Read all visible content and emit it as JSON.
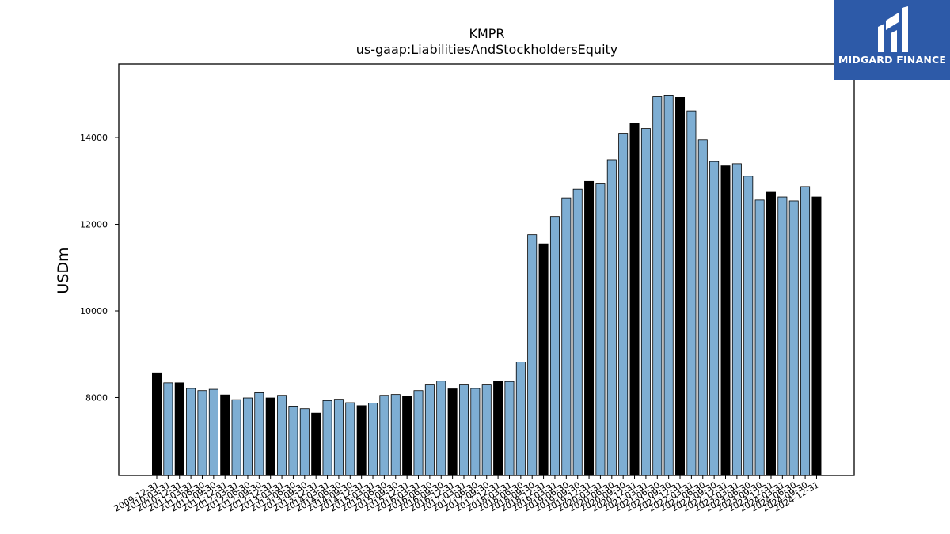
{
  "brand": {
    "name": "MIDGARD FINANCE",
    "panel_color": "#2d5aa8"
  },
  "chart_data": {
    "type": "bar",
    "title": "KMPR",
    "subtitle": "us-gaap:LiabilitiesAndStockholdersEquity",
    "ylabel": "USDm",
    "xlabel": "",
    "ylim": [
      6200,
      15700
    ],
    "yticks": [
      8000,
      10000,
      12000,
      14000
    ],
    "grid": false,
    "colors": {
      "annual": "#000000",
      "quarterly": "#7eaed3",
      "edge": "#000000"
    },
    "categories": [
      "2009-12-31",
      "2010-03-31",
      "2010-12-31",
      "2011-03-31",
      "2011-06-30",
      "2011-09-30",
      "2011-12-31",
      "2012-03-31",
      "2012-06-30",
      "2012-09-30",
      "2012-12-31",
      "2013-03-31",
      "2013-06-30",
      "2013-09-30",
      "2013-12-31",
      "2014-03-31",
      "2014-06-30",
      "2014-09-30",
      "2014-12-31",
      "2015-03-31",
      "2015-06-30",
      "2015-09-30",
      "2015-12-31",
      "2016-03-31",
      "2016-06-30",
      "2016-09-30",
      "2016-12-31",
      "2017-03-31",
      "2017-06-30",
      "2017-09-30",
      "2017-12-31",
      "2018-03-31",
      "2018-06-30",
      "2018-09-30",
      "2018-12-31",
      "2019-03-31",
      "2019-06-30",
      "2019-09-30",
      "2019-12-31",
      "2020-03-31",
      "2020-06-30",
      "2020-09-30",
      "2020-12-31",
      "2021-03-31",
      "2021-06-30",
      "2021-09-30",
      "2021-12-31",
      "2022-03-31",
      "2022-06-30",
      "2022-09-30",
      "2022-12-31",
      "2023-03-31",
      "2023-06-30",
      "2023-09-30",
      "2023-12-31",
      "2024-03-31",
      "2024-06-30",
      "2024-09-30",
      "2024-12-31"
    ],
    "values": [
      8570,
      8340,
      8340,
      8210,
      8160,
      8190,
      8060,
      7950,
      7990,
      8110,
      7990,
      8050,
      7800,
      7740,
      7640,
      7930,
      7960,
      7880,
      7810,
      7870,
      8050,
      8070,
      8030,
      8160,
      8290,
      8380,
      8200,
      8290,
      8210,
      8290,
      8370,
      8370,
      8820,
      11760,
      11550,
      12180,
      12610,
      12810,
      12990,
      12950,
      13490,
      14100,
      14330,
      14210,
      14960,
      14980,
      14930,
      14620,
      13950,
      13450,
      13350,
      13400,
      13110,
      12560,
      12740,
      12630,
      12540,
      12870,
      12630
    ],
    "annual": [
      true,
      false,
      true,
      false,
      false,
      false,
      true,
      false,
      false,
      false,
      true,
      false,
      false,
      false,
      true,
      false,
      false,
      false,
      true,
      false,
      false,
      false,
      true,
      false,
      false,
      false,
      true,
      false,
      false,
      false,
      true,
      false,
      false,
      false,
      true,
      false,
      false,
      false,
      true,
      false,
      false,
      false,
      true,
      false,
      false,
      false,
      true,
      false,
      false,
      false,
      true,
      false,
      false,
      false,
      true,
      false,
      false,
      false,
      true
    ]
  }
}
